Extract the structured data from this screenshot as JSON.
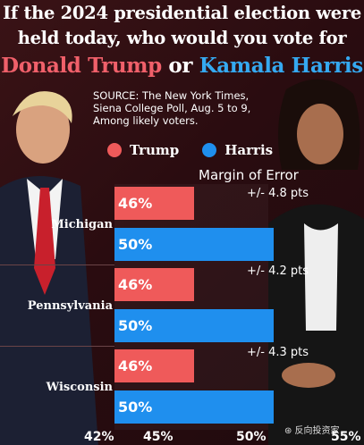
{
  "header": {
    "line1": "If the 2024 presidential election were",
    "line2": "held today, who would you vote for",
    "trump_name": "Donald Trump",
    "or_word": "or",
    "harris_name": "Kamala Harris"
  },
  "source": {
    "line1": "SOURCE: The New York Times,",
    "line2": "Siena College Poll, Aug. 5 to 9,",
    "line3": "Among likely voters."
  },
  "legend": [
    {
      "label": "Trump",
      "color": "#ef5a5a"
    },
    {
      "label": "Harris",
      "color": "#1f8fee"
    }
  ],
  "moe_title": "Margin of Error",
  "watermark": "⊛ 反向投资家",
  "chart_data": {
    "type": "bar",
    "orientation": "horizontal",
    "categories": [
      "Michigan",
      "Pennsylvania",
      "Wisconsin"
    ],
    "series": [
      {
        "name": "Trump",
        "color": "#ef5a5a",
        "values": [
          46,
          46,
          46
        ],
        "labels": [
          "46%",
          "46%",
          "46%"
        ]
      },
      {
        "name": "Harris",
        "color": "#1f8fee",
        "values": [
          50,
          50,
          50
        ],
        "labels": [
          "50%",
          "50%",
          "50%"
        ]
      }
    ],
    "margin_of_error": [
      "+/- 4.8 pts",
      "+/- 4.2 pts",
      "+/- 4.3 pts"
    ],
    "xlim": [
      42,
      55
    ],
    "xticks": [
      42,
      45,
      50,
      55
    ],
    "xtick_labels": [
      "42%",
      "45%",
      "50%",
      "55%"
    ]
  }
}
